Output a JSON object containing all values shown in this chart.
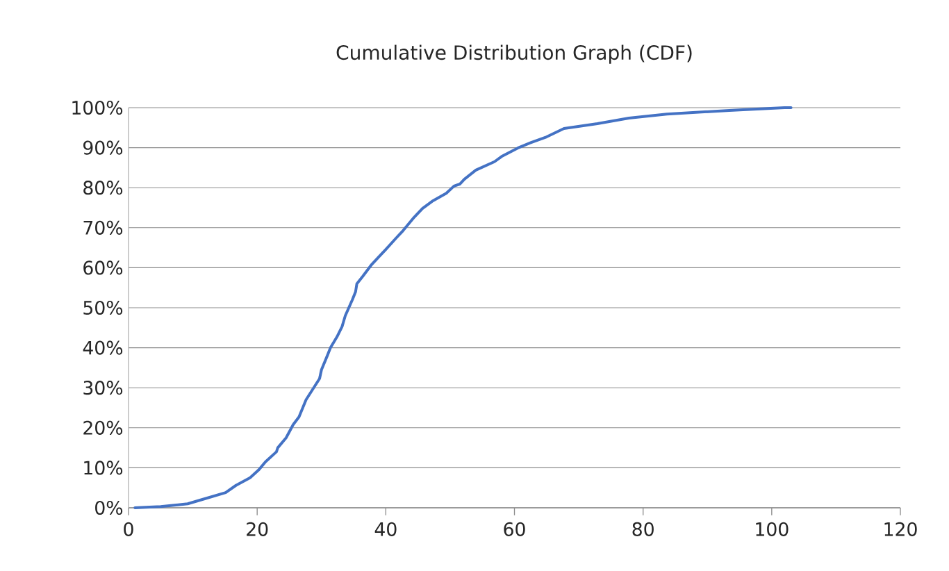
{
  "chart_data": {
    "type": "line",
    "title": "Cumulative Distribution Graph (CDF)",
    "series": [
      {
        "color": "#4472c4",
        "x": [
          1,
          5,
          9.2,
          11.3,
          15.1,
          16.7,
          18.9,
          20.2,
          21.3,
          23,
          23.2,
          24.5,
          25.6,
          26.5,
          27.6,
          29.7,
          30,
          30.9,
          31.4,
          32.4,
          33.2,
          33.7,
          34.8,
          35.3,
          35.5,
          36.4,
          37.8,
          38.9,
          39.9,
          41.6,
          42.7,
          44.4,
          45.7,
          47.2,
          49.4,
          50.6,
          51.5,
          52.2,
          54,
          56.9,
          58,
          60.5,
          62.6,
          65,
          67.7,
          72.9,
          77.8,
          83.7,
          93.4,
          102,
          103
        ],
        "values": [
          0,
          0.3,
          1,
          2,
          3.8,
          5.6,
          7.5,
          9.4,
          11.5,
          14,
          15,
          17.5,
          20.8,
          22.7,
          27,
          32.3,
          34.5,
          38,
          40,
          42.7,
          45.3,
          48,
          52,
          54,
          56,
          57.8,
          60.8,
          62.7,
          64.4,
          67.4,
          69.3,
          72.6,
          74.8,
          76.6,
          78.6,
          80.4,
          80.9,
          82.1,
          84.4,
          86.5,
          87.8,
          89.9,
          91.3,
          92.7,
          94.8,
          96,
          97.4,
          98.4,
          99.3,
          100,
          100
        ]
      }
    ],
    "xlim": [
      0,
      120
    ],
    "xticks": [
      0,
      20,
      40,
      60,
      80,
      100,
      120
    ],
    "ylim": [
      0,
      100
    ],
    "yticks": [
      {
        "value": 0,
        "label": "0%"
      },
      {
        "value": 10,
        "label": "10%"
      },
      {
        "value": 20,
        "label": "20%"
      },
      {
        "value": 30,
        "label": "30%"
      },
      {
        "value": 40,
        "label": "40%"
      },
      {
        "value": 50,
        "label": "50%"
      },
      {
        "value": 60,
        "label": "60%"
      },
      {
        "value": 70,
        "label": "70%"
      },
      {
        "value": 80,
        "label": "80%"
      },
      {
        "value": 90,
        "label": "90%"
      },
      {
        "value": 100,
        "label": "100%"
      }
    ],
    "grid": "y",
    "marker": "none",
    "line_style": "solid"
  }
}
